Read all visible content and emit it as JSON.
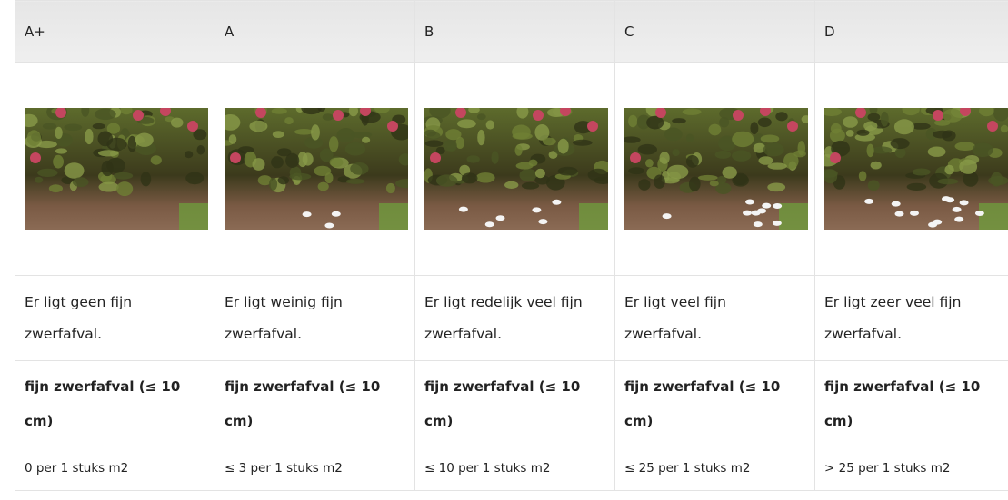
{
  "table": {
    "header": [
      "A+",
      "A",
      "B",
      "C",
      "D"
    ],
    "rows": [
      [
        "Er ligt geen fijn zwerfafval.",
        "Er ligt weinig fijn zwerfafval.",
        "Er ligt redelijk veel fijn zwerfafval.",
        "Er ligt veel fijn zwerfafval.",
        "Er ligt zeer veel fijn zwerfafval."
      ],
      [
        "fijn zwerfafval (≤ 10 cm)",
        "fijn zwerfafval (≤ 10 cm)",
        "fijn zwerfafval (≤ 10 cm)",
        "fijn zwerfafval (≤ 10 cm)",
        "fijn zwerfafval (≤ 10 cm)"
      ],
      [
        "0 per 1 stuks m2",
        "≤ 3 per 1 stuks m2",
        "≤ 10 per 1 stuks m2",
        "≤ 25 per 1 stuks m2",
        "> 25 per 1 stuks m2"
      ]
    ]
  }
}
